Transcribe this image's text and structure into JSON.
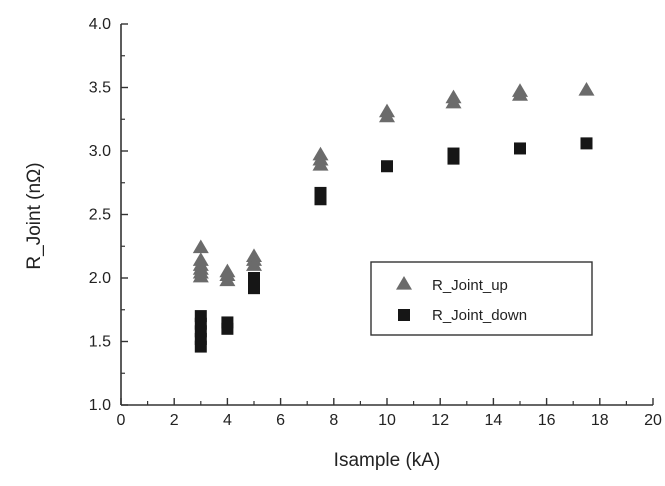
{
  "chart_data": {
    "type": "scatter",
    "title": "",
    "xlabel": "Isample (kA)",
    "ylabel": "R_Joint (nΩ)",
    "xlim": [
      0,
      20
    ],
    "ylim": [
      1.0,
      4.0
    ],
    "x_ticks": [
      "0",
      "2",
      "4",
      "6",
      "8",
      "10",
      "12",
      "14",
      "16",
      "18",
      "20"
    ],
    "y_ticks": [
      "1.0",
      "1.5",
      "2.0",
      "2.5",
      "3.0",
      "3.5",
      "4.0"
    ],
    "grid": false,
    "legend_position": "center-right",
    "series": [
      {
        "name": "R_Joint_up",
        "marker": "triangle",
        "color": "#6b6b6b",
        "points": [
          [
            3,
            2.24
          ],
          [
            3,
            2.14
          ],
          [
            3,
            2.1
          ],
          [
            3,
            2.07
          ],
          [
            3,
            2.04
          ],
          [
            3,
            2.01
          ],
          [
            4,
            2.05
          ],
          [
            4,
            2.02
          ],
          [
            4,
            1.98
          ],
          [
            5,
            2.17
          ],
          [
            5,
            2.14
          ],
          [
            5,
            2.1
          ],
          [
            7.5,
            2.97
          ],
          [
            7.5,
            2.93
          ],
          [
            7.5,
            2.89
          ],
          [
            10,
            3.31
          ],
          [
            10,
            3.27
          ],
          [
            12.5,
            3.42
          ],
          [
            12.5,
            3.38
          ],
          [
            15,
            3.47
          ],
          [
            15,
            3.44
          ],
          [
            17.5,
            3.48
          ]
        ]
      },
      {
        "name": "R_Joint_down",
        "marker": "square",
        "color": "#161616",
        "points": [
          [
            3,
            1.7
          ],
          [
            3,
            1.64
          ],
          [
            3,
            1.58
          ],
          [
            3,
            1.52
          ],
          [
            3,
            1.46
          ],
          [
            4,
            1.65
          ],
          [
            4,
            1.6
          ],
          [
            5,
            2.0
          ],
          [
            5,
            1.92
          ],
          [
            7.5,
            2.67
          ],
          [
            7.5,
            2.62
          ],
          [
            10,
            2.88
          ],
          [
            12.5,
            2.98
          ],
          [
            12.5,
            2.94
          ],
          [
            15,
            3.02
          ],
          [
            17.5,
            3.06
          ]
        ]
      }
    ]
  }
}
